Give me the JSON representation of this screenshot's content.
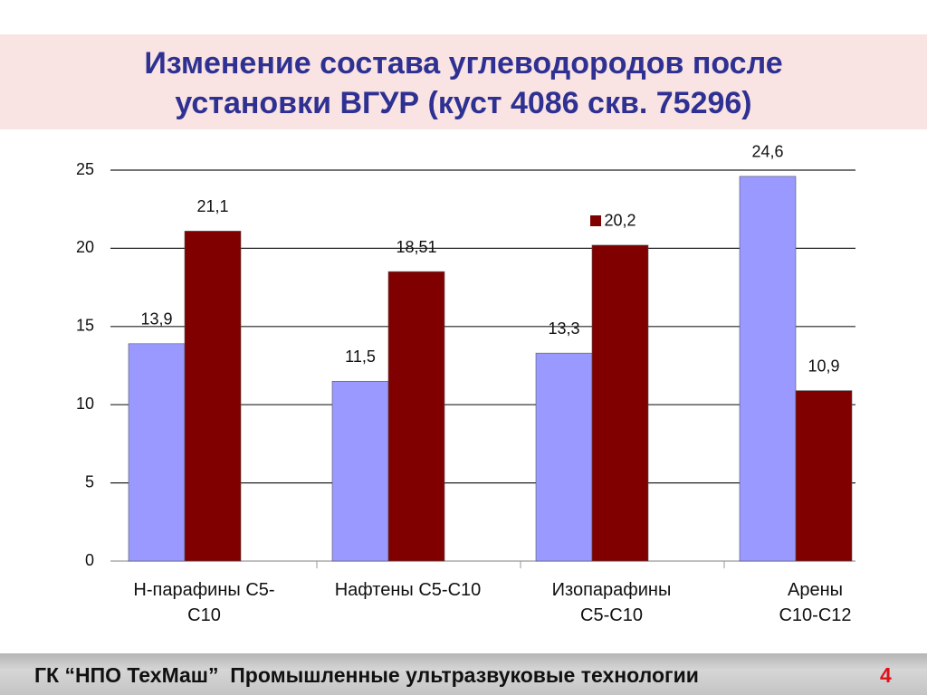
{
  "chart_data": {
    "type": "bar",
    "title": "Изменение состава углеводородов после\nустановки ВГУР    (куст 4086 скв. 75296)",
    "categories": [
      "Н-парафины С5-\nС10",
      "Нафтены С5-С10",
      "Изопарафины\nС5-С10",
      "Арены\nС10-С12"
    ],
    "series": [
      {
        "color": "#9999ff",
        "values": [
          13.9,
          11.5,
          13.3,
          24.6
        ],
        "value_labels": [
          "13,9",
          "11,5",
          "13,3",
          "24,6"
        ]
      },
      {
        "color": "#800000",
        "values": [
          21.1,
          18.51,
          20.2,
          10.9
        ],
        "value_labels": [
          "21,1",
          "18,51",
          "20,2",
          "10,9"
        ]
      }
    ],
    "ylim": [
      0,
      25
    ],
    "yticks": [
      0,
      5,
      10,
      15,
      20,
      25
    ],
    "grid": true
  },
  "footer": {
    "text": "ГК “НПО ТехМаш”  Промышленные ультразвуковые технологии",
    "page": "4"
  }
}
